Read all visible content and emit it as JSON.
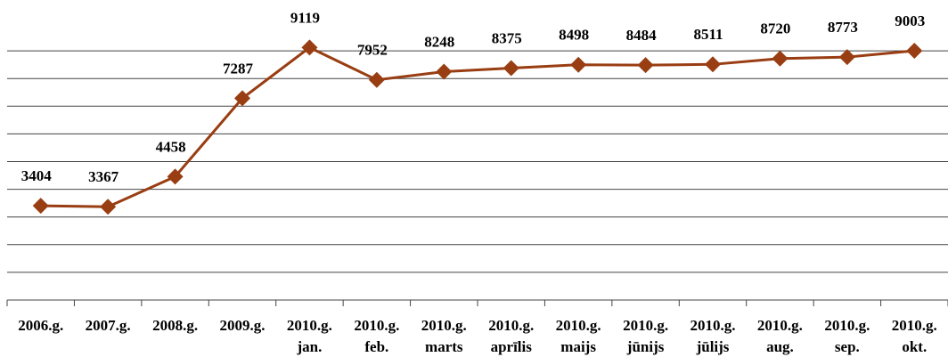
{
  "chart_data": {
    "type": "line",
    "categories": [
      [
        "2006.g."
      ],
      [
        "2007.g."
      ],
      [
        "2008.g."
      ],
      [
        "2009.g."
      ],
      [
        "2010.g.",
        "jan."
      ],
      [
        "2010.g.",
        "feb."
      ],
      [
        "2010.g.",
        "marts"
      ],
      [
        "2010.g.",
        "aprīlis"
      ],
      [
        "2010.g.",
        "maijs"
      ],
      [
        "2010.g.",
        "jūnijs"
      ],
      [
        "2010.g.",
        "jūlijs"
      ],
      [
        "2010.g.",
        "aug."
      ],
      [
        "2010.g.",
        "sep."
      ],
      [
        "2010.g.",
        "okt."
      ]
    ],
    "values": [
      3404,
      3367,
      4458,
      7287,
      9119,
      7952,
      8248,
      8375,
      8498,
      8484,
      8511,
      8720,
      8773,
      9003
    ],
    "color": "#993d12",
    "ylim": [
      0,
      10000
    ],
    "yticks": [
      0,
      1000,
      2000,
      3000,
      4000,
      5000,
      6000,
      7000,
      8000,
      9000
    ],
    "grid": true
  }
}
